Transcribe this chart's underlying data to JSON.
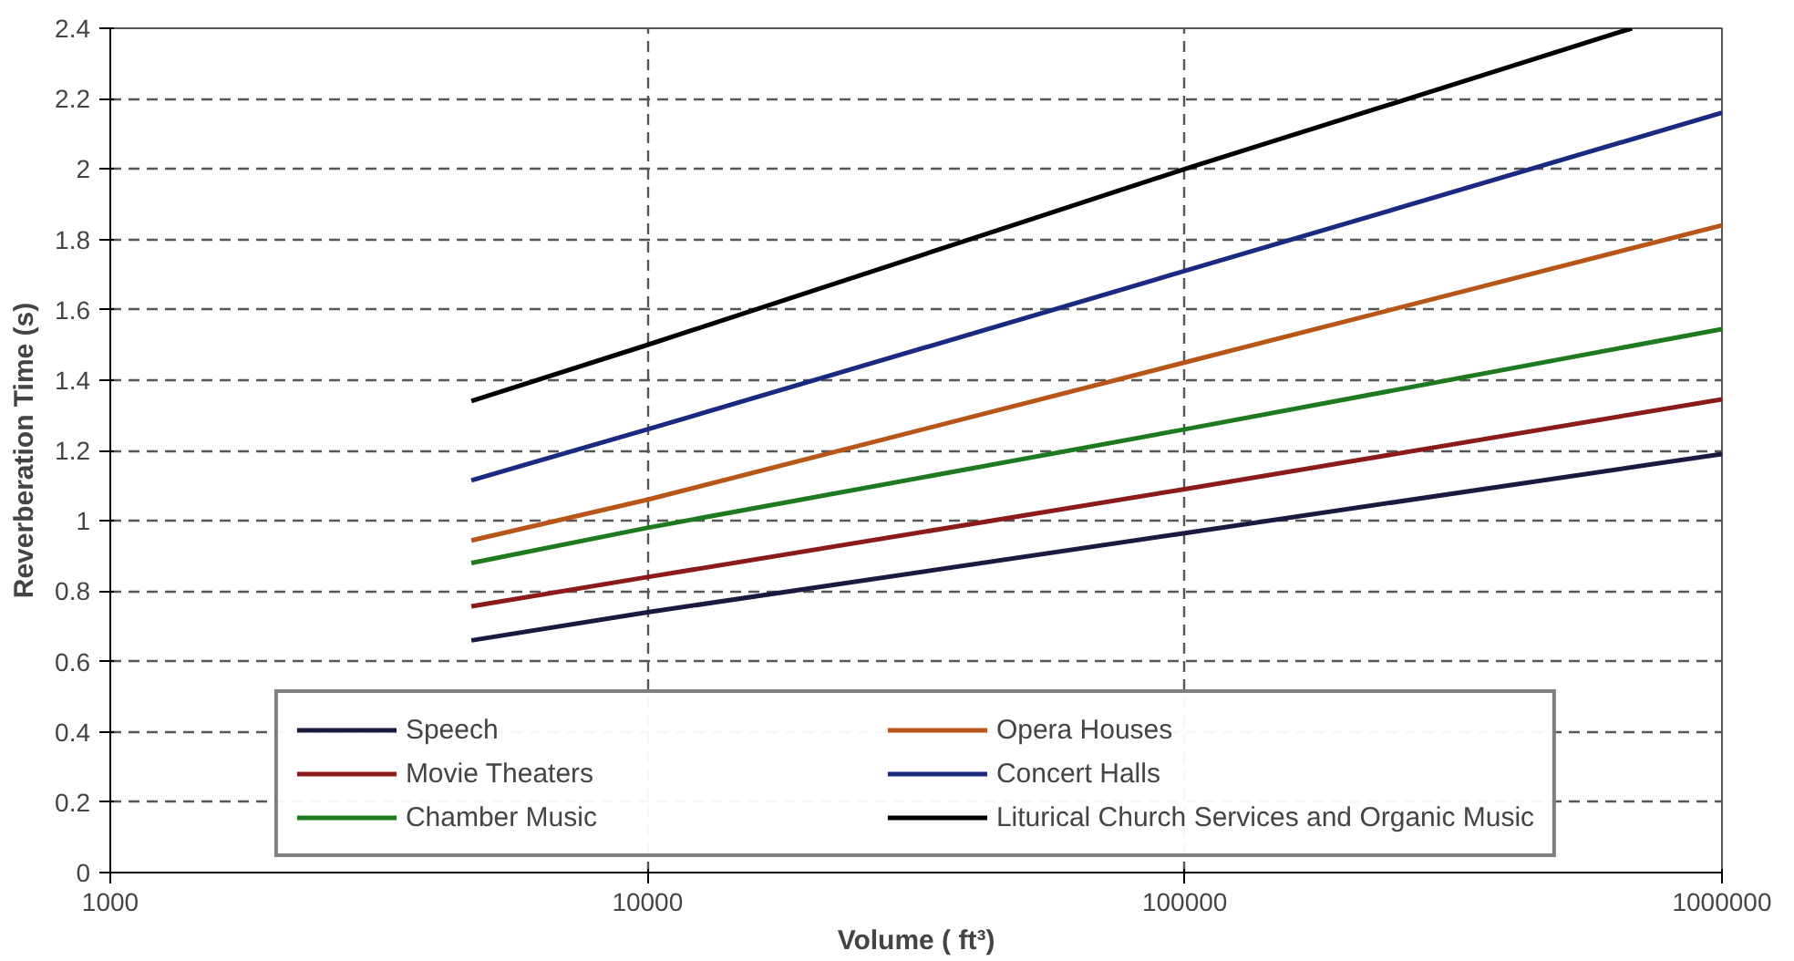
{
  "chart_data": {
    "type": "line",
    "xlabel": "Volume ( ft³)",
    "ylabel": "Reverberation Time (s)",
    "log": "x",
    "grid": true,
    "legend": "bottom",
    "line_style": "solid",
    "marker": "none",
    "xlim": [
      1000,
      1000000
    ],
    "xticks": [
      1000,
      10000,
      100000,
      1000000
    ],
    "ylim": [
      0,
      2.4
    ],
    "yticks": [
      0,
      0.2,
      0.4,
      0.6,
      0.8,
      1,
      1.2,
      1.4,
      1.6,
      1.8,
      2,
      2.2,
      2.4
    ],
    "x": [
      4700,
      10000,
      100000,
      1000000
    ],
    "series": [
      {
        "name": "Speech",
        "color": "#1a1a40",
        "values": [
          0.66,
          0.74,
          0.965,
          1.19
        ]
      },
      {
        "name": "Movie Theaters",
        "color": "#8b1a1a",
        "values": [
          0.757,
          0.84,
          1.09,
          1.345
        ]
      },
      {
        "name": "Chamber Music",
        "color": "#1f7a1f",
        "values": [
          0.88,
          0.98,
          1.26,
          1.545
        ]
      },
      {
        "name": "Opera Houses",
        "color": "#b8561a",
        "values": [
          0.944,
          1.06,
          1.45,
          1.84
        ]
      },
      {
        "name": "Concert Halls",
        "color": "#1a2a80",
        "values": [
          1.115,
          1.26,
          1.71,
          2.16
        ]
      },
      {
        "name": "Liturical Church Services and Organic Music",
        "color": "#000000",
        "x": [
          4700,
          10000,
          100000,
          680000
        ],
        "values": [
          1.34,
          1.5,
          2.0,
          2.4
        ]
      }
    ]
  }
}
